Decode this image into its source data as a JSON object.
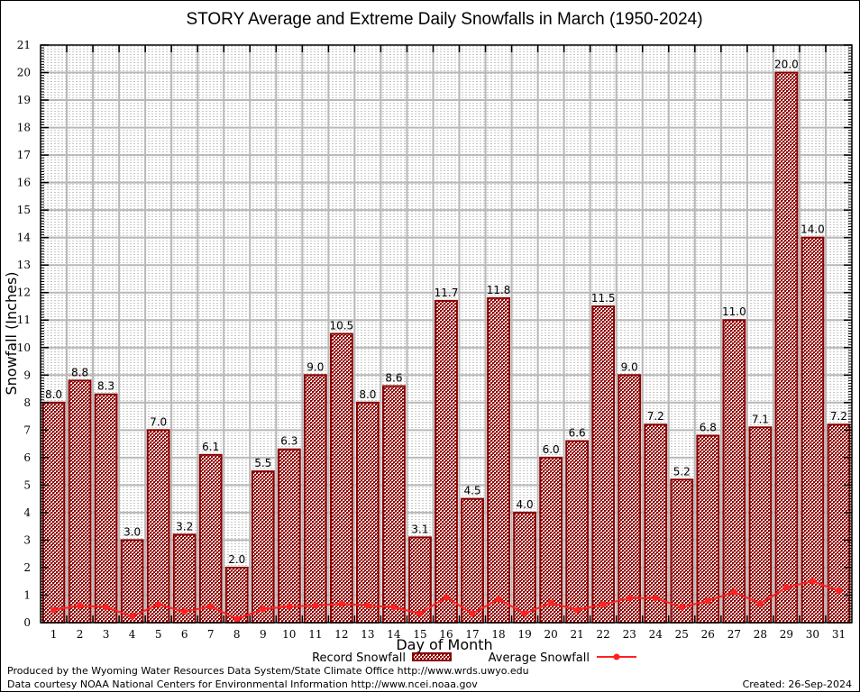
{
  "chart_data": {
    "type": "bar",
    "title": "STORY Average and Extreme Daily Snowfalls in March (1950-2024)",
    "xlabel": "Day of Month",
    "ylabel": "Snowfall (Inches)",
    "ylim": [
      0,
      21
    ],
    "yticks": [
      "0",
      "1",
      "2",
      "3",
      "4",
      "5",
      "6",
      "7",
      "8",
      "9",
      "10",
      "11",
      "12",
      "13",
      "14",
      "15",
      "16",
      "17",
      "18",
      "19",
      "20",
      "21"
    ],
    "grid": true,
    "categories": [
      "1",
      "2",
      "3",
      "4",
      "5",
      "6",
      "7",
      "8",
      "9",
      "10",
      "11",
      "12",
      "13",
      "14",
      "15",
      "16",
      "17",
      "18",
      "19",
      "20",
      "21",
      "22",
      "23",
      "24",
      "25",
      "26",
      "27",
      "28",
      "29",
      "30",
      "31"
    ],
    "series": [
      {
        "name": "Record Snowfall",
        "type": "bar",
        "color": "#8b0000",
        "values": [
          8.0,
          8.8,
          8.3,
          3.0,
          7.0,
          3.2,
          6.1,
          2.0,
          5.5,
          6.3,
          9.0,
          10.5,
          8.0,
          8.6,
          3.1,
          11.7,
          4.5,
          11.8,
          4.0,
          6.0,
          6.6,
          11.5,
          9.0,
          7.2,
          5.2,
          6.8,
          11.0,
          7.1,
          20.0,
          14.0,
          7.2
        ],
        "labels": [
          "8.0",
          "8.8",
          "8.3",
          "3.0",
          "7.0",
          "3.2",
          "6.1",
          "2.0",
          "5.5",
          "6.3",
          "9.0",
          "10.5",
          "8.0",
          "8.6",
          "3.1",
          "11.7",
          "4.5",
          "11.8",
          "4.0",
          "6.0",
          "6.6",
          "11.5",
          "9.0",
          "7.2",
          "5.2",
          "6.8",
          "11.0",
          "7.1",
          "20.0",
          "14.0",
          "7.2"
        ]
      },
      {
        "name": "Average Snowfall",
        "type": "line",
        "color": "#ff2020",
        "values": [
          0.46,
          0.62,
          0.56,
          0.23,
          0.66,
          0.4,
          0.59,
          0.13,
          0.49,
          0.59,
          0.62,
          0.69,
          0.62,
          0.56,
          0.33,
          0.92,
          0.33,
          0.85,
          0.33,
          0.72,
          0.46,
          0.66,
          0.89,
          0.89,
          0.56,
          0.79,
          1.11,
          0.69,
          1.28,
          1.51,
          1.15
        ]
      }
    ],
    "legend_position": "bottom-center"
  },
  "footer": {
    "credit_line1": "Produced by the Wyoming Water Resources Data System/State Climate Office http://www.wrds.uwyo.edu",
    "credit_line2": "Data courtesy NOAA National Centers for Environmental Information http://www.ncei.noaa.gov",
    "created": "Created: 26-Sep-2024"
  }
}
